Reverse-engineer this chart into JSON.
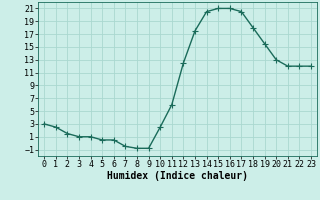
{
  "x": [
    0,
    1,
    2,
    3,
    4,
    5,
    6,
    7,
    8,
    9,
    10,
    11,
    12,
    13,
    14,
    15,
    16,
    17,
    18,
    19,
    20,
    21,
    22,
    23
  ],
  "y": [
    3,
    2.5,
    1.5,
    1,
    1,
    0.5,
    0.5,
    -0.5,
    -0.8,
    -0.8,
    2.5,
    6,
    12.5,
    17.5,
    20.5,
    21,
    21,
    20.5,
    18,
    15.5,
    13,
    12,
    12,
    12
  ],
  "line_color": "#1a6b5a",
  "marker": "+",
  "marker_size": 4,
  "marker_color": "#1a6b5a",
  "bg_color": "#cceee8",
  "grid_major_color": "#aad8d0",
  "grid_minor_color": "#c0e8e0",
  "xlabel": "Humidex (Indice chaleur)",
  "xlim": [
    -0.5,
    23.5
  ],
  "ylim": [
    -2,
    22
  ],
  "yticks": [
    -1,
    1,
    3,
    5,
    7,
    9,
    11,
    13,
    15,
    17,
    19,
    21
  ],
  "xticks": [
    0,
    1,
    2,
    3,
    4,
    5,
    6,
    7,
    8,
    9,
    10,
    11,
    12,
    13,
    14,
    15,
    16,
    17,
    18,
    19,
    20,
    21,
    22,
    23
  ],
  "tick_fontsize": 6,
  "xlabel_fontsize": 7
}
